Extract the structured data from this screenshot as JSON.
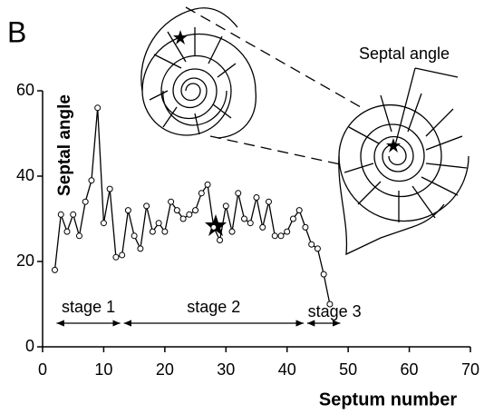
{
  "chart_data": {
    "type": "line",
    "panel_label": "B",
    "y_label": "Septal angle",
    "x_label": "Septum number",
    "annotation": "Septal angle",
    "x": [
      2,
      3,
      4,
      5,
      6,
      7,
      8,
      9,
      10,
      11,
      12,
      13,
      14,
      15,
      16,
      17,
      18,
      19,
      20,
      21,
      22,
      23,
      24,
      25,
      26,
      27,
      28,
      29,
      30,
      31,
      32,
      33,
      34,
      35,
      36,
      37,
      38,
      39,
      40,
      41,
      42,
      43,
      44,
      45,
      46,
      47
    ],
    "values": [
      18,
      31,
      27,
      31,
      26,
      34,
      39,
      56,
      29,
      37,
      21,
      21.5,
      32,
      26,
      23,
      33,
      27,
      29,
      27,
      34,
      32,
      30,
      31,
      32,
      36,
      38,
      28,
      25,
      33,
      27,
      36,
      30,
      29,
      35,
      28,
      34,
      26,
      26,
      27,
      30,
      32,
      28,
      24,
      23,
      17,
      10
    ],
    "color": "#000000",
    "xlim": [
      0,
      70
    ],
    "xticks": [
      0,
      10,
      20,
      30,
      40,
      50,
      60,
      70
    ],
    "ylim": [
      0,
      60
    ],
    "yticks": [
      0,
      20,
      40,
      60
    ],
    "grid": false,
    "stages": [
      {
        "label": "stage 1",
        "start": 2,
        "end": 13
      },
      {
        "label": "stage 2",
        "start": 13,
        "end": 43
      },
      {
        "label": "stage 3",
        "start": 43,
        "end": 49
      }
    ]
  }
}
